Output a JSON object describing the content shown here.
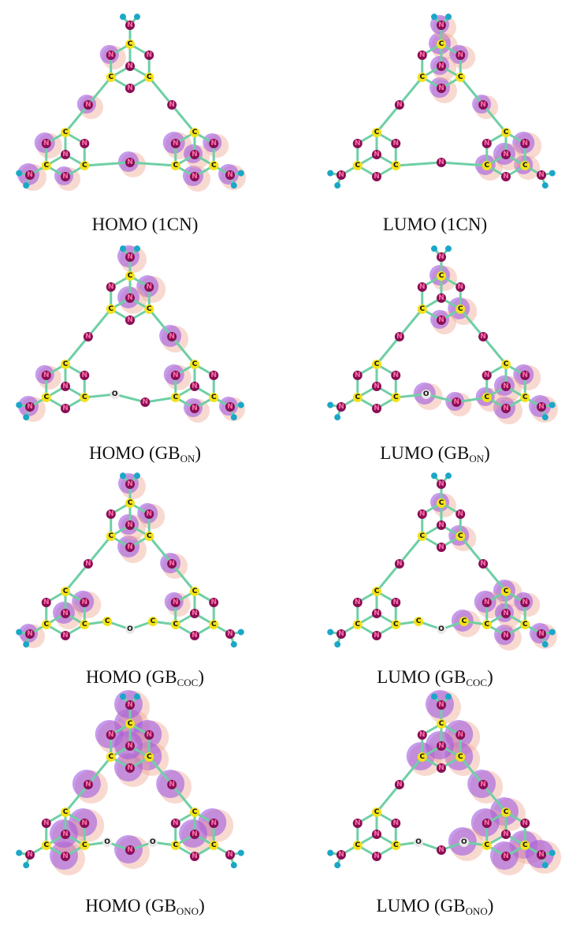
{
  "atom_symbols": {
    "C": "C",
    "N": "N",
    "O": "O"
  },
  "panels": [
    {
      "caption": {
        "prefix": "HOMO (1CN)"
      }
    },
    {
      "caption": {
        "prefix": "LUMO (1CN)"
      }
    },
    {
      "caption": {
        "prefix": "HOMO (GB",
        "subscript": "ON",
        "suffix": ")"
      }
    },
    {
      "caption": {
        "prefix": "LUMO (GB",
        "subscript": "ON",
        "suffix": ")"
      }
    },
    {
      "caption": {
        "prefix": "HOMO (GB",
        "subscript": "COC",
        "suffix": ")"
      }
    },
    {
      "caption": {
        "prefix": "LUMO (GB",
        "subscript": "COC",
        "suffix": ")"
      }
    },
    {
      "caption": {
        "prefix": "HOMO (GB",
        "subscript": "ONO",
        "suffix": ")"
      }
    },
    {
      "caption": {
        "prefix": "LUMO (GB",
        "subscript": "ONO",
        "suffix": ")"
      }
    }
  ]
}
